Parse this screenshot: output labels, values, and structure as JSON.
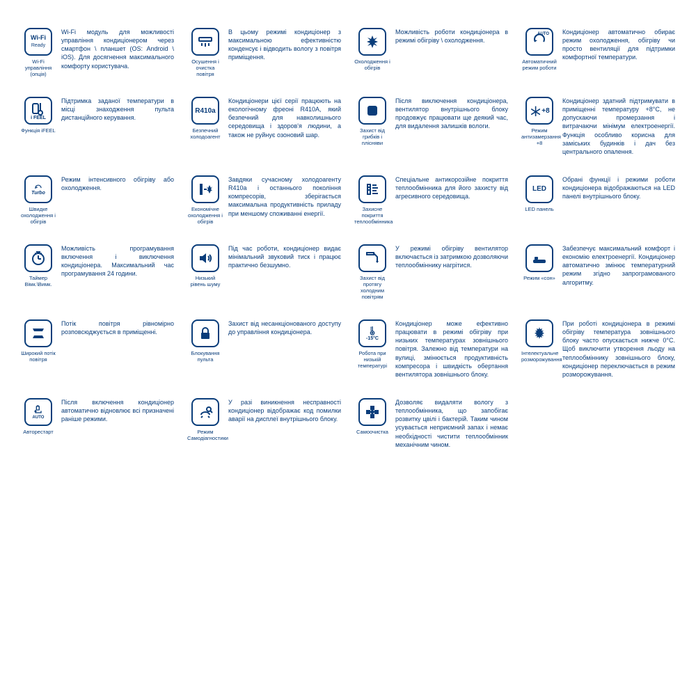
{
  "colors": {
    "primary": "#0a3d7a",
    "background": "#ffffff",
    "border": "#0a3d7a"
  },
  "layout": {
    "columns": 4,
    "rows": 6,
    "icon_box_size": 40,
    "icon_border_radius": 9,
    "label_fontsize": 7.5,
    "desc_fontsize": 9
  },
  "features": [
    {
      "icon": "wifi",
      "icon_text": "Wi-Fi Ready",
      "label": "Wi-Fi управління (опція)",
      "desc": "Wi-Fi модуль для можливості управління кондиціонером через смартфон \\ планшет (OS: Android \\ iOS). Для досягнення максимального комфорту користувача."
    },
    {
      "icon": "dehumid",
      "icon_text": "",
      "label": "Осушення і очистка повітря",
      "desc": "В цьому режимі кондиціонер з максимальною ефективністю конденсує і відводить вологу з повітря приміщення."
    },
    {
      "icon": "coolheat",
      "icon_text": "",
      "label": "Охолодження і обігрів",
      "desc": "Можливість роботи кондиціонера в режимі обігріву \\ охолодження."
    },
    {
      "icon": "auto",
      "icon_text": "AUTO",
      "label": "Автоматичний режим роботи",
      "desc": "Кондиціонер автоматично обирає режим охолодження, обігріву чи просто вентиляції для підтримки комфортної температури."
    },
    {
      "icon": "ifeel",
      "icon_text": "",
      "label": "Функція iFEEL",
      "desc": "Підтримка заданої температури в місці знаходження пульта дистанційного керування."
    },
    {
      "icon": "r410a",
      "icon_text": "R410a",
      "label": "Безпечний холодоагент",
      "desc": "Кондиціонери цієї серії працюють на екологічному фреоні R410A, який безпечний для навколишнього середовища і здоров'я людини, а також не руйнує озоновий шар."
    },
    {
      "icon": "mold",
      "icon_text": "",
      "label": "Захист від грибків і плісняви",
      "desc": "Після виключення кондиціонера, вентилятор внутрішнього блоку продовжує працювати ще деякий час, для видалення залишків вологи."
    },
    {
      "icon": "antifreeze",
      "icon_text": "+8",
      "label": "Режим антизамерзання +8",
      "desc": "Кондиціонер здатний підтримувати в приміщенні температуру +8°С, не допускаючи промерзання і витрачаючи мінімум електроенергії. Функція особливо корисна для заміських будинків і дач без центрального опалення."
    },
    {
      "icon": "turbo",
      "icon_text": "Turbo",
      "label": "Швидке охолодження і обігрів",
      "desc": "Режим інтенсивного обігріву або охолодження."
    },
    {
      "icon": "eco",
      "icon_text": "",
      "label": "Економічне охолодження і обігрів",
      "desc": "Завдяки сучасному холодоагенту R410a і останнього покоління компресорів, зберігається максимальна продуктивність приладу при меншому споживанні енергії."
    },
    {
      "icon": "coating",
      "icon_text": "",
      "label": "Захисне покриття теплообмінника",
      "desc": "Спеціальне антикорозійне покриття теплообмінника для його захисту від агресивного середовища."
    },
    {
      "icon": "led",
      "icon_text": "LED",
      "label": "LED панель",
      "desc": "Обрані функції і режими роботи кондиціонера відображаються на LED панелі внутрішнього блоку."
    },
    {
      "icon": "timer",
      "icon_text": "",
      "label": "Таймер Вімк.\\Вимк.",
      "desc": "Можливість програмування включення і виключення кондиціонера. Максимальний час програмування 24 години."
    },
    {
      "icon": "quiet",
      "icon_text": "",
      "label": "Низький рівень шуму",
      "desc": "Під час роботи, кондиціонер видає мінімальний звуковий тиск і працює практично безшумно."
    },
    {
      "icon": "coldair",
      "icon_text": "",
      "label": "Захист від протягу холодним повітрям",
      "desc": "У режимі обігріву вентилятор включається із затримкою дозволяючи теплообміннику нагрітися."
    },
    {
      "icon": "sleep",
      "icon_text": "",
      "label": "Режим «сон»",
      "desc": "Забезпечує максимальний комфорт і економію електроенергії. Кондиціонер автоматично змінює температурний режим згідно запрограмованого алгоритму."
    },
    {
      "icon": "wideflow",
      "icon_text": "",
      "label": "Широкий потік повітря",
      "desc": "Потік повітря рівномірно розповсюджується в приміщенні."
    },
    {
      "icon": "lock",
      "icon_text": "",
      "label": "Блокування пульта",
      "desc": "Захист від несанкціонованого доступу до управління кондиціонера."
    },
    {
      "icon": "lowtemp",
      "icon_text": "-15°C",
      "label": "Робота при низькій температурі",
      "desc": "Кондиціонер може ефективно працювати в режимі обігріву при низьких температурах зовнішнього повітря. Залежно від температури на вулиці, змінюється продуктивність компресора і швидкість обертання вентилятора зовнішнього блоку."
    },
    {
      "icon": "defrost",
      "icon_text": "",
      "label": "Інтелектуальне розморожування",
      "desc": "При роботі кондиціонера в режимі обігріву температура зовнішнього блоку часто опускається нижче 0°С. Щоб виключити утворення льоду на теплообміннику зовнішнього блоку, кондиціонер переключається в режим розморожування."
    },
    {
      "icon": "autorestart",
      "icon_text": "AUTO",
      "label": "Авторестарт",
      "desc": "Після включення кондиціонер автоматично відновлює всі призначені раніше режими."
    },
    {
      "icon": "selfdiag",
      "icon_text": "",
      "label": "Режим Самодіагностики",
      "desc": "У разі виникнення несправності кондиціонер відображає код помилки аварії на дисплеї внутрішнього блоку."
    },
    {
      "icon": "selfclean",
      "icon_text": "",
      "label": "Самоочистка",
      "desc": "Дозволяє видаляти вологу з теплообмінника, що запобігає розвитку цвілі і бактерій. Таким чином усувається неприємний запах і немає необхідності чистити теплообмінник механічним чином."
    }
  ]
}
